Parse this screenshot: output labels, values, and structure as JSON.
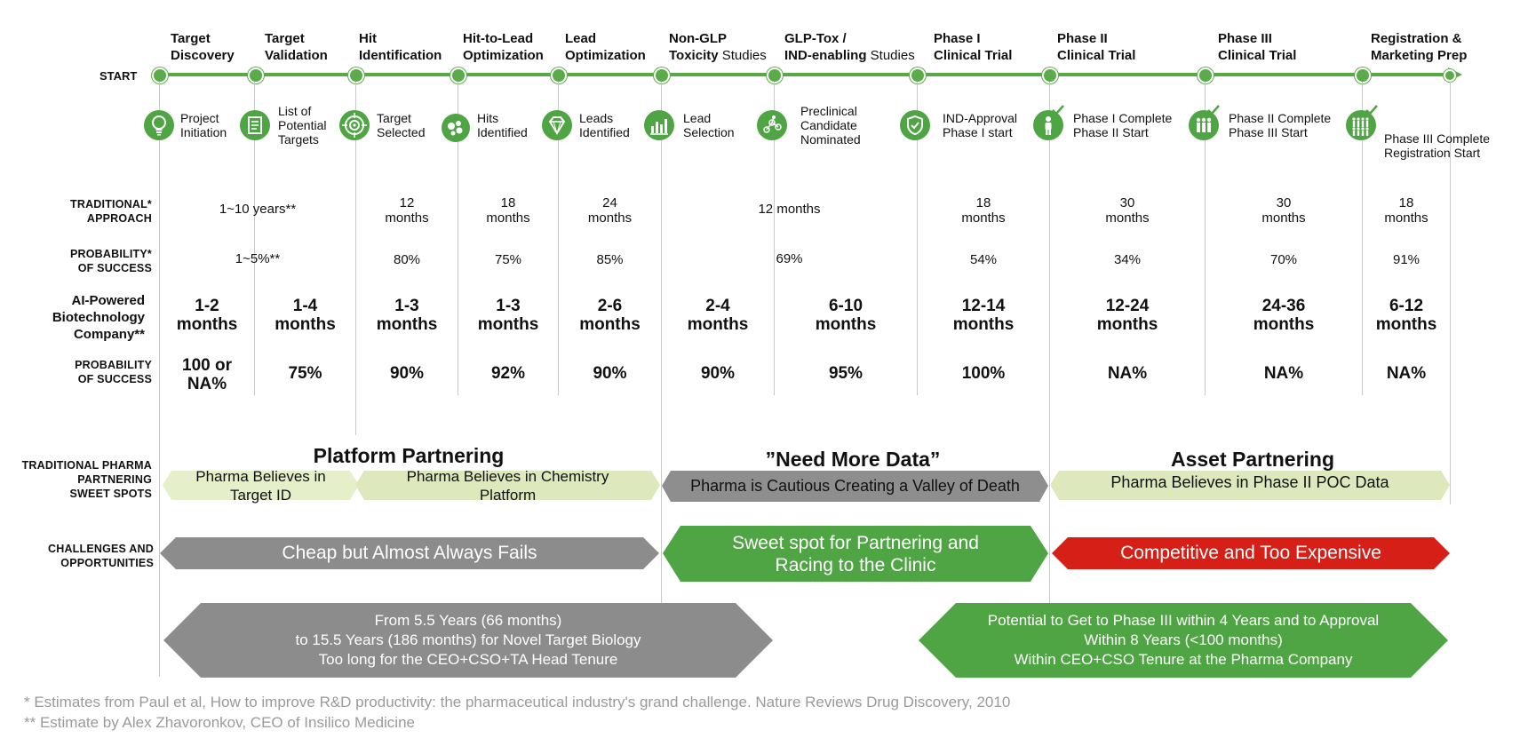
{
  "start_label": "START",
  "stages": [
    {
      "l1": "Target",
      "l2": "Discovery",
      "l2light": ""
    },
    {
      "l1": "Target",
      "l2": "Validation",
      "l2light": ""
    },
    {
      "l1": "Hit",
      "l2": "Identification",
      "l2light": ""
    },
    {
      "l1": "Hit-to-Lead",
      "l2": "Optimization",
      "l2light": ""
    },
    {
      "l1": "Lead",
      "l2": "Optimization",
      "l2light": ""
    },
    {
      "l1": "Non-GLP",
      "l2": "Toxicity",
      "l2light": " Studies"
    },
    {
      "l1": "GLP-Tox /",
      "l2": "IND-enabling",
      "l2light": " Studies"
    },
    {
      "l1": "Phase I",
      "l2": "Clinical Trial",
      "l2light": ""
    },
    {
      "l1": "Phase II",
      "l2": "Clinical Trial",
      "l2light": ""
    },
    {
      "l1": "Phase III",
      "l2": "Clinical Trial",
      "l2light": ""
    },
    {
      "l1": "Registration &",
      "l2": "Marketing Prep",
      "l2light": ""
    }
  ],
  "milestones": [
    {
      "icon": "lightbulb-icon",
      "lines": [
        "Project",
        "Initiation"
      ]
    },
    {
      "icon": "document-list-icon",
      "lines": [
        "List of",
        "Potential",
        "Targets"
      ]
    },
    {
      "icon": "target-icon",
      "lines": [
        "Target",
        "Selected"
      ]
    },
    {
      "icon": "molecule-cluster-icon",
      "lines": [
        "Hits",
        "Identified"
      ]
    },
    {
      "icon": "diamond-icon",
      "lines": [
        "Leads",
        "Identified"
      ]
    },
    {
      "icon": "bar-chart-icon",
      "lines": [
        "Lead",
        "Selection"
      ]
    },
    {
      "icon": "molecule-icon",
      "lines": [
        "Preclinical",
        "Candidate",
        "Nominated"
      ]
    },
    {
      "icon": "shield-check-icon",
      "lines": [
        "IND-Approval",
        "Phase I start"
      ]
    },
    {
      "icon": "person-icon",
      "lines": [
        "Phase I Complete",
        "Phase II Start"
      ]
    },
    {
      "icon": "group-icon",
      "lines": [
        "Phase II Complete",
        "Phase III Start"
      ]
    },
    {
      "icon": "crowd-icon",
      "lines": [
        "Phase III Complete",
        "Registration Start"
      ]
    }
  ],
  "row_labels": {
    "traditional": [
      "TRADITIONAL*",
      "APPROACH"
    ],
    "prob_trad": [
      "PROBABILITY*",
      "OF SUCCESS"
    ],
    "ai": [
      "AI-Powered",
      "Biotechnology",
      "Company**"
    ],
    "prob_ai": [
      "PROBABILITY",
      "OF SUCCESS"
    ],
    "partnering": [
      "TRADITIONAL PHARMA",
      "PARTNERING",
      "SWEET SPOTS"
    ],
    "challenges": [
      "CHALLENGES AND",
      "OPPORTUNITIES"
    ]
  },
  "traditional_approach": [
    {
      "lines": [
        "1~10 years**"
      ]
    },
    {
      "lines": [
        "12",
        "months"
      ]
    },
    {
      "lines": [
        "18",
        "months"
      ]
    },
    {
      "lines": [
        "24",
        "months"
      ]
    },
    {
      "lines": [
        "12 months"
      ]
    },
    {
      "lines": [
        "18",
        "months"
      ]
    },
    {
      "lines": [
        "30",
        "months"
      ]
    },
    {
      "lines": [
        "30",
        "months"
      ]
    },
    {
      "lines": [
        "18",
        "months"
      ]
    }
  ],
  "traditional_probability": [
    "1~5%**",
    "80%",
    "75%",
    "85%",
    "69%",
    "54%",
    "34%",
    "70%",
    "91%"
  ],
  "ai_durations": [
    [
      "1-2",
      "months"
    ],
    [
      "1-4",
      "months"
    ],
    [
      "1-3",
      "months"
    ],
    [
      "1-3",
      "months"
    ],
    [
      "2-6",
      "months"
    ],
    [
      "2-4",
      "months"
    ],
    [
      "6-10",
      "months"
    ],
    [
      "12-14",
      "months"
    ],
    [
      "12-24",
      "months"
    ],
    [
      "24-36",
      "months"
    ],
    [
      "6-12",
      "months"
    ]
  ],
  "ai_probability": [
    [
      "100 or",
      "NA%"
    ],
    [
      "75%"
    ],
    [
      "90%"
    ],
    [
      "92%"
    ],
    [
      "90%"
    ],
    [
      "90%"
    ],
    [
      "95%"
    ],
    [
      "100%"
    ],
    [
      "NA%"
    ],
    [
      "NA%"
    ],
    [
      "NA%"
    ]
  ],
  "sections": {
    "platform": "Platform Partnering",
    "need_data": "”Need More Data”",
    "asset": "Asset Partnering"
  },
  "partnering": {
    "target_id": [
      "Pharma Believes in",
      "Target ID"
    ],
    "chemistry": [
      "Pharma Believes in Chemistry",
      "Platform"
    ],
    "valley": [
      "Pharma is Cautious Creating a Valley of Death"
    ],
    "poc": [
      "Pharma Believes in Phase II POC Data"
    ]
  },
  "challenges": {
    "cheap": [
      "Cheap but Almost Always Fails"
    ],
    "sweet": [
      "Sweet spot for Partnering and",
      "Racing to the Clinic"
    ],
    "expensive": [
      "Competitive and Too Expensive"
    ]
  },
  "timelines": {
    "traditional": [
      "From 5.5 Years (66 months)",
      "to 15.5 Years (186 months) for Novel Target Biology",
      "Too long for the CEO+CSO+TA Head Tenure"
    ],
    "ai": [
      "Potential to Get to Phase III within 4 Years and to Approval",
      "Within 8 Years (<100 months)",
      "Within CEO+CSO Tenure at the Pharma Company"
    ]
  },
  "footnotes": [
    "* Estimates from Paul et al, How to improve R&D productivity: the pharmaceutical industry's grand challenge. Nature Reviews Drug Discovery, 2010",
    "** Estimate by Alex Zhavoronkov, CEO of Insilico Medicine"
  ],
  "colors": {
    "green": "#4fa443",
    "gray": "#8c8c8c",
    "light_green": "#e3edc6",
    "red": "#d51f17"
  }
}
